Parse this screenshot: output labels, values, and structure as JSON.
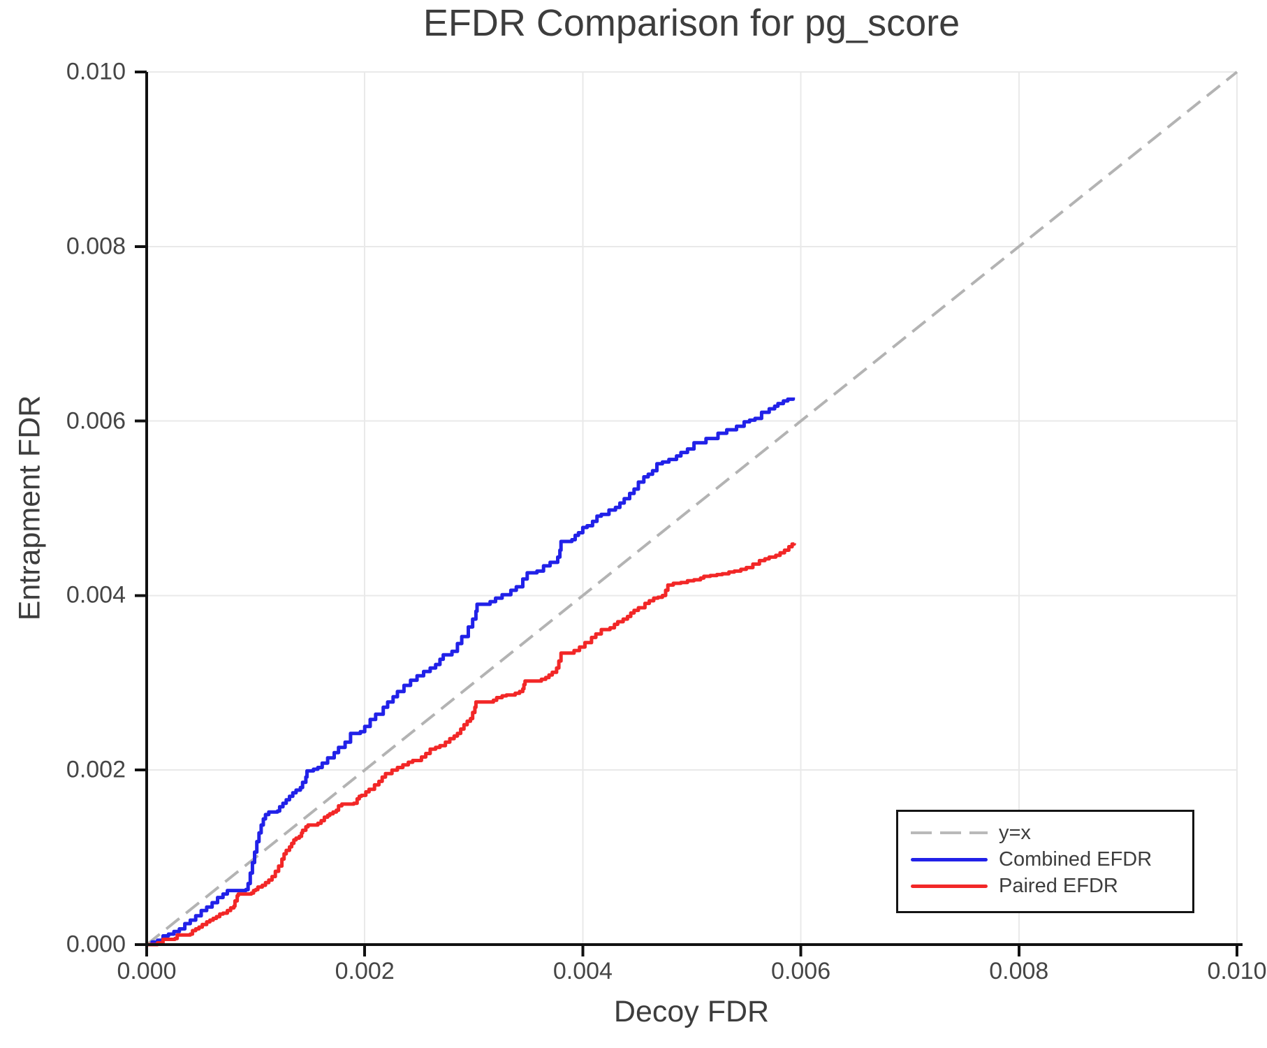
{
  "figure": {
    "background": "#ffffff"
  },
  "chart_data": {
    "type": "line",
    "title": "EFDR Comparison for pg_score",
    "xlabel": "Decoy FDR",
    "ylabel": "Entrapment FDR",
    "xlim": [
      0,
      0.01
    ],
    "ylim": [
      0,
      0.01
    ],
    "x_ticks": [
      0,
      0.002,
      0.004,
      0.006,
      0.008,
      0.01
    ],
    "x_tick_labels": [
      "0.000",
      "0.002",
      "0.004",
      "0.006",
      "0.008",
      "0.010"
    ],
    "y_ticks": [
      0,
      0.002,
      0.004,
      0.006,
      0.008,
      0.01
    ],
    "y_tick_labels": [
      "0.000",
      "0.002",
      "0.004",
      "0.006",
      "0.008",
      "0.010"
    ],
    "grid": true,
    "grid_color": "#e9e9e9",
    "spine_color": "#111111",
    "legend_position": "lower right",
    "series": [
      {
        "name": "y=x",
        "style": "dashed",
        "step": false,
        "color": "#b3b3b3",
        "width": 4,
        "points": [
          [
            0,
            0
          ],
          [
            0.01,
            0.01
          ]
        ]
      },
      {
        "name": "Combined EFDR",
        "style": "solid",
        "step": true,
        "color": "#2121e8",
        "width": 5,
        "points": [
          [
            0,
            0
          ],
          [
            5e-05,
            3e-05
          ],
          [
            0.0001,
            5e-05
          ],
          [
            0.00015,
            0.0001
          ],
          [
            0.0002,
            0.00012
          ],
          [
            0.00025,
            0.00015
          ],
          [
            0.0003,
            0.00018
          ],
          [
            0.00035,
            0.00024
          ],
          [
            0.0004,
            0.00028
          ],
          [
            0.00045,
            0.00033
          ],
          [
            0.0005,
            0.00039
          ],
          [
            0.00055,
            0.00043
          ],
          [
            0.0006,
            0.00048
          ],
          [
            0.00065,
            0.00054
          ],
          [
            0.0007,
            0.00058
          ],
          [
            0.00074,
            0.00062
          ],
          [
            0.00091,
            0.00063
          ],
          [
            0.00093,
            0.0007
          ],
          [
            0.00095,
            0.00082
          ],
          [
            0.00097,
            0.00094
          ],
          [
            0.00099,
            0.00106
          ],
          [
            0.00101,
            0.00118
          ],
          [
            0.00103,
            0.00128
          ],
          [
            0.00105,
            0.00137
          ],
          [
            0.00107,
            0.00144
          ],
          [
            0.00109,
            0.00149
          ],
          [
            0.00112,
            0.00152
          ],
          [
            0.0012,
            0.00153
          ],
          [
            0.00122,
            0.00158
          ],
          [
            0.00125,
            0.00162
          ],
          [
            0.00128,
            0.00166
          ],
          [
            0.00131,
            0.0017
          ],
          [
            0.00134,
            0.00174
          ],
          [
            0.00137,
            0.00177
          ],
          [
            0.00141,
            0.0018
          ],
          [
            0.00143,
            0.00186
          ],
          [
            0.00146,
            0.00192
          ],
          [
            0.00147,
            0.00199
          ],
          [
            0.00153,
            0.00201
          ],
          [
            0.00157,
            0.00203
          ],
          [
            0.00161,
            0.00208
          ],
          [
            0.00166,
            0.00214
          ],
          [
            0.00172,
            0.0022
          ],
          [
            0.00176,
            0.00226
          ],
          [
            0.00182,
            0.00232
          ],
          [
            0.00187,
            0.00242
          ],
          [
            0.00196,
            0.00244
          ],
          [
            0.002,
            0.0025
          ],
          [
            0.00205,
            0.00258
          ],
          [
            0.0021,
            0.00264
          ],
          [
            0.00217,
            0.00272
          ],
          [
            0.00221,
            0.00278
          ],
          [
            0.00226,
            0.00284
          ],
          [
            0.0023,
            0.0029
          ],
          [
            0.00236,
            0.00297
          ],
          [
            0.00242,
            0.00303
          ],
          [
            0.00248,
            0.00308
          ],
          [
            0.00254,
            0.00313
          ],
          [
            0.0026,
            0.00317
          ],
          [
            0.00265,
            0.00321
          ],
          [
            0.00269,
            0.00327
          ],
          [
            0.00272,
            0.00332
          ],
          [
            0.0028,
            0.00336
          ],
          [
            0.00285,
            0.00345
          ],
          [
            0.00289,
            0.00353
          ],
          [
            0.00295,
            0.00364
          ],
          [
            0.00299,
            0.00373
          ],
          [
            0.00302,
            0.00382
          ],
          [
            0.00303,
            0.0039
          ],
          [
            0.00315,
            0.00393
          ],
          [
            0.0032,
            0.00397
          ],
          [
            0.00326,
            0.00401
          ],
          [
            0.00334,
            0.00406
          ],
          [
            0.00339,
            0.0041
          ],
          [
            0.00345,
            0.00419
          ],
          [
            0.00349,
            0.00426
          ],
          [
            0.00358,
            0.00428
          ],
          [
            0.00364,
            0.00434
          ],
          [
            0.0037,
            0.00438
          ],
          [
            0.00377,
            0.00444
          ],
          [
            0.00379,
            0.00452
          ],
          [
            0.0038,
            0.00462
          ],
          [
            0.0039,
            0.00464
          ],
          [
            0.00393,
            0.00469
          ],
          [
            0.00396,
            0.00472
          ],
          [
            0.004,
            0.00478
          ],
          [
            0.00404,
            0.0048
          ],
          [
            0.00409,
            0.00485
          ],
          [
            0.00413,
            0.00491
          ],
          [
            0.00417,
            0.00493
          ],
          [
            0.00424,
            0.00498
          ],
          [
            0.0043,
            0.00501
          ],
          [
            0.00434,
            0.00506
          ],
          [
            0.00438,
            0.00511
          ],
          [
            0.00443,
            0.00517
          ],
          [
            0.00447,
            0.00522
          ],
          [
            0.00451,
            0.0053
          ],
          [
            0.00456,
            0.00536
          ],
          [
            0.0046,
            0.00539
          ],
          [
            0.00464,
            0.00543
          ],
          [
            0.00468,
            0.00551
          ],
          [
            0.00473,
            0.00553
          ],
          [
            0.00479,
            0.00556
          ],
          [
            0.00486,
            0.0056
          ],
          [
            0.0049,
            0.00564
          ],
          [
            0.00496,
            0.00568
          ],
          [
            0.00502,
            0.00575
          ],
          [
            0.00513,
            0.0058
          ],
          [
            0.00524,
            0.00586
          ],
          [
            0.00532,
            0.0059
          ],
          [
            0.00541,
            0.00594
          ],
          [
            0.00548,
            0.00599
          ],
          [
            0.00553,
            0.00601
          ],
          [
            0.00558,
            0.00603
          ],
          [
            0.00564,
            0.0061
          ],
          [
            0.00571,
            0.00614
          ],
          [
            0.00576,
            0.00617
          ],
          [
            0.00579,
            0.0062
          ],
          [
            0.00584,
            0.00623
          ],
          [
            0.00588,
            0.00625
          ],
          [
            0.00593,
            0.00627
          ]
        ]
      },
      {
        "name": "Paired EFDR",
        "style": "solid",
        "step": true,
        "color": "#f22727",
        "width": 5,
        "points": [
          [
            0,
            0
          ],
          [
            0.0001,
            2e-05
          ],
          [
            0.00015,
            6e-05
          ],
          [
            0.00026,
            7e-05
          ],
          [
            0.00028,
            0.00011
          ],
          [
            0.0004,
            0.00012
          ],
          [
            0.00042,
            0.00016
          ],
          [
            0.00045,
            0.00018
          ],
          [
            0.00048,
            0.0002
          ],
          [
            0.00051,
            0.00023
          ],
          [
            0.00055,
            0.00026
          ],
          [
            0.00058,
            0.00028
          ],
          [
            0.00061,
            0.0003
          ],
          [
            0.00064,
            0.00032
          ],
          [
            0.00067,
            0.00035
          ],
          [
            0.0007,
            0.00036
          ],
          [
            0.00074,
            0.00039
          ],
          [
            0.00077,
            0.00042
          ],
          [
            0.0008,
            0.00044
          ],
          [
            0.00081,
            0.0005
          ],
          [
            0.00083,
            0.00056
          ],
          [
            0.00084,
            0.00058
          ],
          [
            0.00096,
            0.00059
          ],
          [
            0.00098,
            0.00062
          ],
          [
            0.001,
            0.00063
          ],
          [
            0.00102,
            0.00066
          ],
          [
            0.00106,
            0.00068
          ],
          [
            0.00109,
            0.00071
          ],
          [
            0.00112,
            0.00074
          ],
          [
            0.00115,
            0.00078
          ],
          [
            0.00118,
            0.00084
          ],
          [
            0.00121,
            0.0009
          ],
          [
            0.00124,
            0.00098
          ],
          [
            0.00126,
            0.00104
          ],
          [
            0.00128,
            0.00108
          ],
          [
            0.00131,
            0.00112
          ],
          [
            0.00133,
            0.00116
          ],
          [
            0.00135,
            0.0012
          ],
          [
            0.00137,
            0.00122
          ],
          [
            0.0014,
            0.00124
          ],
          [
            0.00142,
            0.00128
          ],
          [
            0.00143,
            0.00131
          ],
          [
            0.00146,
            0.00135
          ],
          [
            0.00148,
            0.00137
          ],
          [
            0.00157,
            0.00139
          ],
          [
            0.0016,
            0.00142
          ],
          [
            0.00163,
            0.00146
          ],
          [
            0.00166,
            0.00148
          ],
          [
            0.00168,
            0.0015
          ],
          [
            0.00171,
            0.00152
          ],
          [
            0.00174,
            0.00154
          ],
          [
            0.00176,
            0.00159
          ],
          [
            0.00179,
            0.00161
          ],
          [
            0.0019,
            0.00162
          ],
          [
            0.00193,
            0.00167
          ],
          [
            0.00195,
            0.0017
          ],
          [
            0.00197,
            0.00171
          ],
          [
            0.00201,
            0.00175
          ],
          [
            0.00204,
            0.00178
          ],
          [
            0.00209,
            0.00183
          ],
          [
            0.00213,
            0.00187
          ],
          [
            0.00216,
            0.00192
          ],
          [
            0.00219,
            0.00196
          ],
          [
            0.00225,
            0.002
          ],
          [
            0.0023,
            0.00203
          ],
          [
            0.00235,
            0.00206
          ],
          [
            0.0024,
            0.00209
          ],
          [
            0.00244,
            0.00211
          ],
          [
            0.00252,
            0.00215
          ],
          [
            0.00256,
            0.00219
          ],
          [
            0.0026,
            0.00224
          ],
          [
            0.00265,
            0.00226
          ],
          [
            0.00269,
            0.00228
          ],
          [
            0.00274,
            0.00232
          ],
          [
            0.00278,
            0.00236
          ],
          [
            0.00282,
            0.00239
          ],
          [
            0.00285,
            0.00242
          ],
          [
            0.00288,
            0.00247
          ],
          [
            0.00291,
            0.00252
          ],
          [
            0.00294,
            0.00256
          ],
          [
            0.00297,
            0.00259
          ],
          [
            0.00299,
            0.00266
          ],
          [
            0.00301,
            0.00272
          ],
          [
            0.00302,
            0.00278
          ],
          [
            0.00318,
            0.0028
          ],
          [
            0.00321,
            0.00283
          ],
          [
            0.00326,
            0.00285
          ],
          [
            0.0033,
            0.00286
          ],
          [
            0.00338,
            0.00288
          ],
          [
            0.00342,
            0.0029
          ],
          [
            0.00345,
            0.00293
          ],
          [
            0.00346,
            0.00298
          ],
          [
            0.00347,
            0.00302
          ],
          [
            0.00362,
            0.00304
          ],
          [
            0.00366,
            0.00306
          ],
          [
            0.00369,
            0.00309
          ],
          [
            0.00372,
            0.00312
          ],
          [
            0.00376,
            0.00317
          ],
          [
            0.00378,
            0.00325
          ],
          [
            0.0038,
            0.00334
          ],
          [
            0.00392,
            0.00337
          ],
          [
            0.00397,
            0.00341
          ],
          [
            0.00402,
            0.00346
          ],
          [
            0.00408,
            0.00352
          ],
          [
            0.00412,
            0.00356
          ],
          [
            0.00417,
            0.00361
          ],
          [
            0.00425,
            0.00363
          ],
          [
            0.00429,
            0.00367
          ],
          [
            0.00432,
            0.0037
          ],
          [
            0.00437,
            0.00373
          ],
          [
            0.00441,
            0.00376
          ],
          [
            0.00444,
            0.0038
          ],
          [
            0.00447,
            0.00383
          ],
          [
            0.00451,
            0.00386
          ],
          [
            0.00457,
            0.00391
          ],
          [
            0.00461,
            0.00394
          ],
          [
            0.00465,
            0.00397
          ],
          [
            0.00469,
            0.00398
          ],
          [
            0.00473,
            0.004
          ],
          [
            0.00476,
            0.00406
          ],
          [
            0.00478,
            0.00412
          ],
          [
            0.00483,
            0.00414
          ],
          [
            0.0049,
            0.00415
          ],
          [
            0.00496,
            0.00417
          ],
          [
            0.00502,
            0.00418
          ],
          [
            0.00508,
            0.0042
          ],
          [
            0.00511,
            0.00422
          ],
          [
            0.00517,
            0.00423
          ],
          [
            0.00523,
            0.00424
          ],
          [
            0.00528,
            0.00425
          ],
          [
            0.00534,
            0.00427
          ],
          [
            0.00539,
            0.00428
          ],
          [
            0.00545,
            0.0043
          ],
          [
            0.0055,
            0.00432
          ],
          [
            0.00556,
            0.00436
          ],
          [
            0.00562,
            0.0044
          ],
          [
            0.00567,
            0.00442
          ],
          [
            0.00571,
            0.00444
          ],
          [
            0.00577,
            0.00446
          ],
          [
            0.00581,
            0.00449
          ],
          [
            0.00585,
            0.00452
          ],
          [
            0.00589,
            0.00456
          ],
          [
            0.00592,
            0.00459
          ],
          [
            0.00594,
            0.0046
          ]
        ]
      }
    ]
  },
  "legend": {
    "items": [
      {
        "label": "y=x"
      },
      {
        "label": "Combined EFDR"
      },
      {
        "label": "Paired EFDR"
      }
    ]
  }
}
